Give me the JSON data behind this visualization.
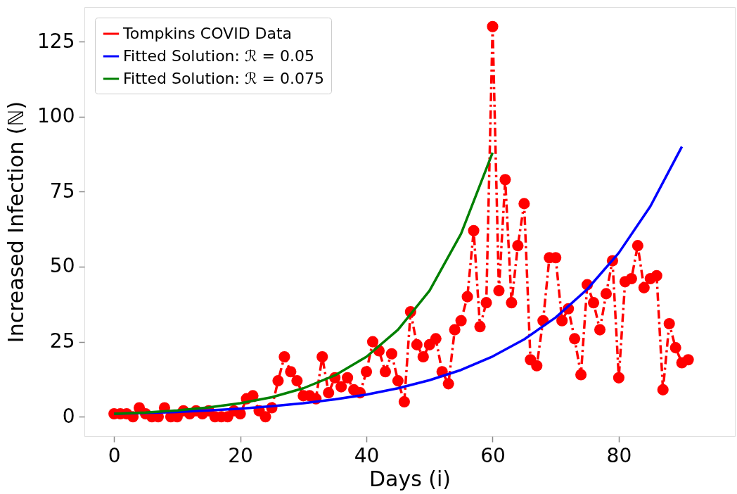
{
  "chart_data": {
    "type": "line",
    "xlabel": "Days (i)",
    "ylabel": "Increased Infection (ℕ)",
    "xlim": [
      -4.7,
      98.4
    ],
    "ylim": [
      -6.5,
      136.5
    ],
    "xticks": [
      0,
      20,
      40,
      60,
      80
    ],
    "yticks": [
      0,
      25,
      50,
      75,
      100,
      125
    ],
    "grid": false,
    "legend": "top left",
    "series": [
      {
        "name": "Tompkins COVID Data",
        "color": "#ff0000",
        "marker": "circle",
        "line_style": "dashed",
        "x": [
          0,
          1,
          2,
          3,
          4,
          5,
          6,
          7,
          8,
          9,
          10,
          11,
          12,
          13,
          14,
          15,
          16,
          17,
          18,
          19,
          20,
          21,
          22,
          23,
          24,
          25,
          26,
          27,
          28,
          29,
          30,
          31,
          32,
          33,
          34,
          35,
          36,
          37,
          38,
          39,
          40,
          41,
          42,
          43,
          44,
          45,
          46,
          47,
          48,
          49,
          50,
          51,
          52,
          53,
          54,
          55,
          56,
          57,
          58,
          59,
          60,
          61,
          62,
          63,
          64,
          65,
          66,
          67,
          68,
          69,
          70,
          71,
          72,
          73,
          74,
          75,
          76,
          77,
          78,
          79,
          80,
          81,
          82,
          83,
          84,
          85,
          86,
          87,
          88,
          89,
          90,
          91
        ],
        "values": [
          1,
          1,
          1,
          0,
          3,
          1,
          0,
          0,
          3,
          0,
          0,
          2,
          1,
          2,
          1,
          2,
          0,
          0,
          0,
          2,
          1,
          6,
          7,
          2,
          0,
          3,
          12,
          20,
          15,
          12,
          7,
          7,
          6,
          20,
          8,
          13,
          10,
          13,
          9,
          8,
          15,
          25,
          22,
          15,
          21,
          12,
          5,
          35,
          24,
          20,
          24,
          26,
          15,
          11,
          29,
          32,
          40,
          62,
          30,
          38,
          130,
          42,
          79,
          38,
          57,
          71,
          19,
          17,
          32,
          53,
          53,
          32,
          36,
          26,
          14,
          44,
          38,
          29,
          41,
          52,
          13,
          45,
          46,
          57,
          43,
          46,
          47,
          9,
          31,
          23,
          18,
          19
        ]
      },
      {
        "name": "Fitted Solution: ℛ = 0.05",
        "color": "#0000ff",
        "marker": "none",
        "line_style": "solid",
        "x": [
          0,
          5,
          10,
          15,
          20,
          25,
          30,
          35,
          40,
          45,
          50,
          55,
          60,
          65,
          70,
          75,
          80,
          85,
          90
        ],
        "values": [
          1,
          1.3,
          1.6,
          2.1,
          2.7,
          3.5,
          4.5,
          5.8,
          7.4,
          9.5,
          12.2,
          15.6,
          20.1,
          25.8,
          33.1,
          42.5,
          54.6,
          70.1,
          90
        ]
      },
      {
        "name": "Fitted Solution: ℛ = 0.075",
        "color": "#008000",
        "marker": "none",
        "line_style": "solid",
        "x": [
          0,
          5,
          10,
          15,
          20,
          25,
          30,
          35,
          40,
          45,
          50,
          55,
          60
        ],
        "values": [
          1,
          1.4,
          2.1,
          3.1,
          4.5,
          6.5,
          9.5,
          13.8,
          20,
          29,
          42,
          61,
          88
        ]
      }
    ]
  }
}
